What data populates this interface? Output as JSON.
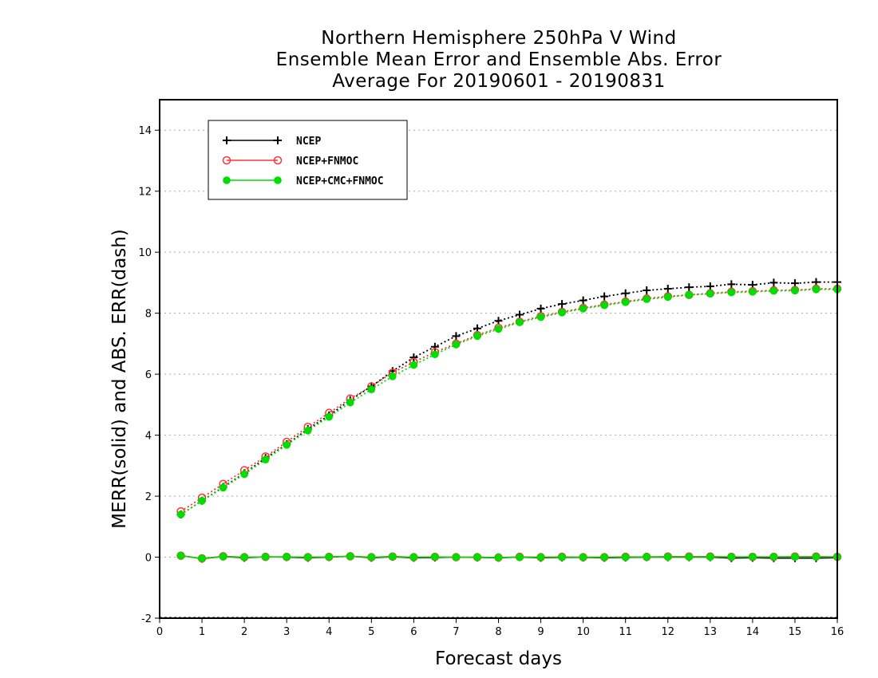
{
  "chart_data": {
    "type": "line",
    "title_lines": [
      "Northern Hemisphere 250hPa V Wind",
      "Ensemble Mean Error and Ensemble Abs. Error",
      "Average For 20190601 - 20190831"
    ],
    "xlabel": "Forecast days",
    "ylabel": "MERR(solid) and ABS. ERR(dash)",
    "xlim": [
      0,
      16
    ],
    "ylim": [
      -2,
      15
    ],
    "xticks": [
      0,
      1,
      2,
      3,
      4,
      5,
      6,
      7,
      8,
      9,
      10,
      11,
      12,
      13,
      14,
      15,
      16
    ],
    "yticks": [
      -2,
      0,
      2,
      4,
      6,
      8,
      10,
      12,
      14
    ],
    "grid": true,
    "legend_position": "top-left",
    "x": [
      0.5,
      1,
      1.5,
      2,
      2.5,
      3,
      3.5,
      4,
      4.5,
      5,
      5.5,
      6,
      6.5,
      7,
      7.5,
      8,
      8.5,
      9,
      9.5,
      10,
      10.5,
      11,
      11.5,
      12,
      12.5,
      13,
      13.5,
      14,
      14.5,
      15,
      15.5,
      16
    ],
    "series": [
      {
        "name": "NCEP",
        "color": "#000000",
        "marker": "plus",
        "merr": [
          0.05,
          -0.05,
          0.02,
          -0.02,
          0.01,
          0.0,
          -0.02,
          0.0,
          0.03,
          -0.02,
          0.01,
          -0.02,
          -0.01,
          0.0,
          -0.01,
          -0.02,
          0.0,
          -0.02,
          -0.01,
          -0.01,
          -0.02,
          -0.01,
          0.0,
          0.0,
          0.0,
          0.0,
          -0.03,
          -0.02,
          -0.03,
          -0.03,
          -0.03,
          -0.02
        ],
        "abs_err": [
          1.4,
          1.85,
          2.3,
          2.75,
          3.25,
          3.7,
          4.2,
          4.65,
          5.15,
          5.6,
          6.1,
          6.55,
          6.9,
          7.25,
          7.5,
          7.75,
          7.95,
          8.15,
          8.3,
          8.42,
          8.55,
          8.65,
          8.75,
          8.8,
          8.85,
          8.88,
          8.95,
          8.93,
          9.0,
          8.98,
          9.02,
          9.02
        ]
      },
      {
        "name": "NCEP+FNMOC",
        "color": "#ff3333",
        "marker": "open-circle",
        "merr": [
          0.05,
          -0.04,
          0.03,
          0.0,
          0.01,
          0.01,
          0.0,
          0.01,
          0.03,
          0.0,
          0.02,
          0.0,
          0.01,
          0.0,
          0.0,
          -0.01,
          0.01,
          0.0,
          0.01,
          0.0,
          0.0,
          0.01,
          0.01,
          0.02,
          0.02,
          0.02,
          0.01,
          0.01,
          0.01,
          0.02,
          0.02,
          0.01
        ],
        "abs_err": [
          1.5,
          1.95,
          2.4,
          2.85,
          3.3,
          3.78,
          4.27,
          4.73,
          5.2,
          5.6,
          6.05,
          6.4,
          6.72,
          7.0,
          7.28,
          7.52,
          7.72,
          7.9,
          8.04,
          8.17,
          8.28,
          8.38,
          8.48,
          8.55,
          8.6,
          8.65,
          8.7,
          8.72,
          8.75,
          8.76,
          8.8,
          8.8
        ]
      },
      {
        "name": "NCEP+CMC+FNMOC",
        "color": "#00dd00",
        "marker": "filled-circle",
        "merr": [
          0.05,
          -0.04,
          0.02,
          0.0,
          0.01,
          0.01,
          0.0,
          0.01,
          0.03,
          0.0,
          0.02,
          0.0,
          0.01,
          0.0,
          0.0,
          -0.01,
          0.0,
          0.0,
          0.0,
          0.0,
          0.0,
          0.0,
          0.01,
          0.01,
          0.01,
          0.01,
          0.01,
          0.01,
          0.01,
          0.01,
          0.01,
          0.01
        ],
        "abs_err": [
          1.4,
          1.85,
          2.28,
          2.72,
          3.2,
          3.68,
          4.15,
          4.6,
          5.07,
          5.5,
          5.93,
          6.3,
          6.65,
          6.97,
          7.25,
          7.48,
          7.7,
          7.87,
          8.02,
          8.15,
          8.26,
          8.36,
          8.46,
          8.53,
          8.6,
          8.64,
          8.68,
          8.7,
          8.73,
          8.74,
          8.78,
          8.78
        ]
      }
    ]
  }
}
